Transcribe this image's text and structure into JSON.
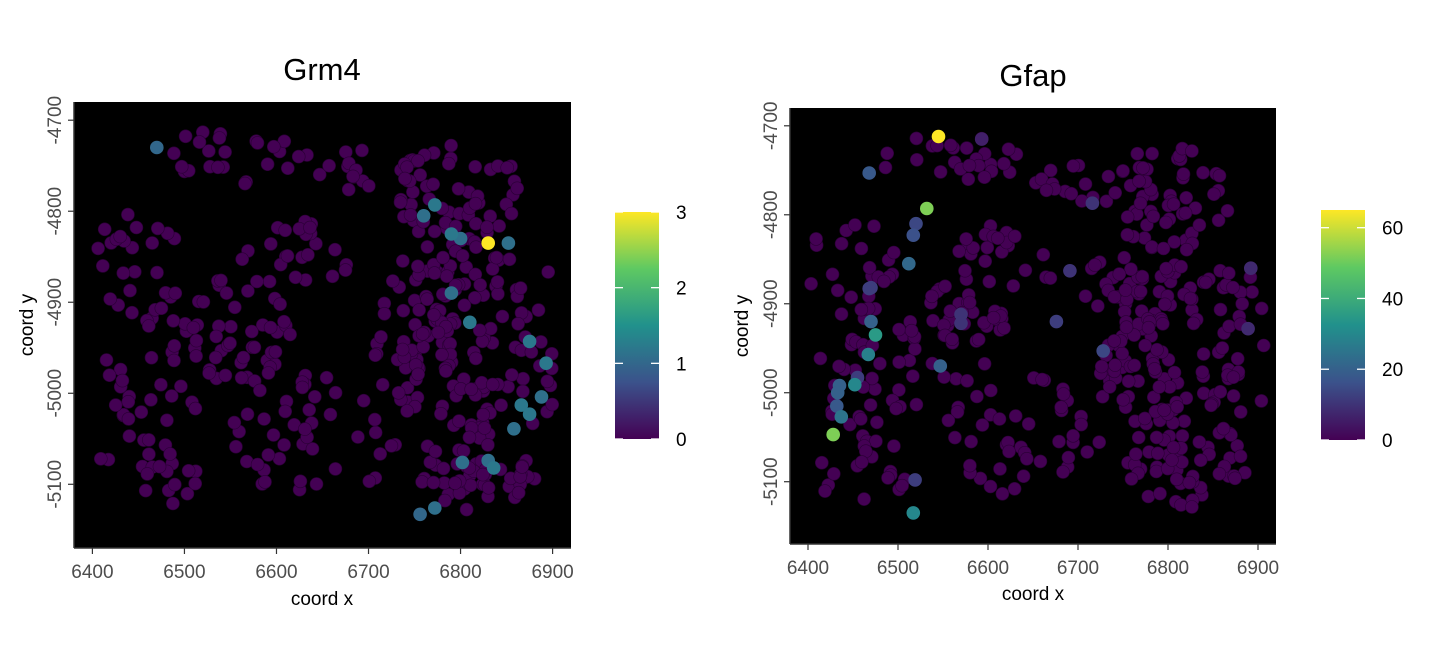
{
  "chart_data": [
    {
      "type": "scatter",
      "title": "Grm4",
      "xlabel": "coord x",
      "ylabel": "coord y",
      "xlim": [
        6380,
        6920
      ],
      "ylim": [
        -5170,
        -4680
      ],
      "xticks": [
        6400,
        6500,
        6600,
        6700,
        6800,
        6900
      ],
      "yticks": [
        -4700,
        -4800,
        -4900,
        -5000,
        -5100
      ],
      "background": "#000000",
      "colorscale": [
        "#440154",
        "#3b528b",
        "#21918c",
        "#5ec962",
        "#fde725"
      ],
      "colorbar": {
        "min": 0,
        "max": 3,
        "ticks": [
          0,
          1,
          2,
          3
        ]
      },
      "baseline_value": 0,
      "highlight_points": [
        {
          "x": 6470,
          "y": -4730,
          "value": 1.0
        },
        {
          "x": 6760,
          "y": -4805,
          "value": 1.1
        },
        {
          "x": 6772,
          "y": -4793,
          "value": 1.2
        },
        {
          "x": 6790,
          "y": -4825,
          "value": 1.2
        },
        {
          "x": 6800,
          "y": -4830,
          "value": 1.1
        },
        {
          "x": 6830,
          "y": -4835,
          "value": 3.0
        },
        {
          "x": 6852,
          "y": -4835,
          "value": 1.1
        },
        {
          "x": 6790,
          "y": -4890,
          "value": 1.1
        },
        {
          "x": 6810,
          "y": -4922,
          "value": 1.2
        },
        {
          "x": 6875,
          "y": -4943,
          "value": 1.2
        },
        {
          "x": 6893,
          "y": -4967,
          "value": 1.2
        },
        {
          "x": 6888,
          "y": -5004,
          "value": 1.1
        },
        {
          "x": 6866,
          "y": -5013,
          "value": 1.2
        },
        {
          "x": 6875,
          "y": -5023,
          "value": 1.2
        },
        {
          "x": 6858,
          "y": -5039,
          "value": 1.1
        },
        {
          "x": 6802,
          "y": -5076,
          "value": 1.1
        },
        {
          "x": 6830,
          "y": -5074,
          "value": 1.1
        },
        {
          "x": 6836,
          "y": -5082,
          "value": 1.2
        },
        {
          "x": 6772,
          "y": -5126,
          "value": 1.1
        },
        {
          "x": 6756,
          "y": -5133,
          "value": 1.0
        }
      ]
    },
    {
      "type": "scatter",
      "title": "Gfap",
      "xlabel": "coord x",
      "ylabel": "coord y",
      "xlim": [
        6380,
        6920
      ],
      "ylim": [
        -5170,
        -4680
      ],
      "xticks": [
        6400,
        6500,
        6600,
        6700,
        6800,
        6900
      ],
      "yticks": [
        -4700,
        -4800,
        -4900,
        -5000,
        -5100
      ],
      "background": "#000000",
      "colorscale": [
        "#440154",
        "#3b528b",
        "#21918c",
        "#5ec962",
        "#fde725"
      ],
      "colorbar": {
        "min": 0,
        "max": 65,
        "ticks": [
          0,
          20,
          40,
          60
        ]
      },
      "baseline_value": 0,
      "highlight_points": [
        {
          "x": 6545,
          "y": -4712,
          "value": 65
        },
        {
          "x": 6593,
          "y": -4715,
          "value": 6
        },
        {
          "x": 6532,
          "y": -4793,
          "value": 52
        },
        {
          "x": 6468,
          "y": -4753,
          "value": 18
        },
        {
          "x": 6520,
          "y": -4810,
          "value": 14
        },
        {
          "x": 6517,
          "y": -4823,
          "value": 16
        },
        {
          "x": 6512,
          "y": -4855,
          "value": 22
        },
        {
          "x": 6470,
          "y": -4882,
          "value": 12
        },
        {
          "x": 6470,
          "y": -4920,
          "value": 20
        },
        {
          "x": 6475,
          "y": -4935,
          "value": 35
        },
        {
          "x": 6467,
          "y": -4957,
          "value": 28
        },
        {
          "x": 6455,
          "y": -4983,
          "value": 12
        },
        {
          "x": 6452,
          "y": -4991,
          "value": 30
        },
        {
          "x": 6435,
          "y": -4992,
          "value": 20
        },
        {
          "x": 6433,
          "y": -5000,
          "value": 20
        },
        {
          "x": 6432,
          "y": -5015,
          "value": 18
        },
        {
          "x": 6437,
          "y": -5027,
          "value": 25
        },
        {
          "x": 6428,
          "y": -5047,
          "value": 52
        },
        {
          "x": 6547,
          "y": -4970,
          "value": 20
        },
        {
          "x": 6570,
          "y": -4912,
          "value": 10
        },
        {
          "x": 6570,
          "y": -4922,
          "value": 10
        },
        {
          "x": 6676,
          "y": -4920,
          "value": 12
        },
        {
          "x": 6728,
          "y": -4953,
          "value": 14
        },
        {
          "x": 6716,
          "y": -4787,
          "value": 10
        },
        {
          "x": 6691,
          "y": -4863,
          "value": 10
        },
        {
          "x": 6892,
          "y": -4860,
          "value": 8
        },
        {
          "x": 6889,
          "y": -4928,
          "value": 8
        },
        {
          "x": 6519,
          "y": -5098,
          "value": 12
        },
        {
          "x": 6517,
          "y": -5135,
          "value": 30
        },
        {
          "x": 6468,
          "y": -4883,
          "value": 12
        }
      ]
    }
  ]
}
